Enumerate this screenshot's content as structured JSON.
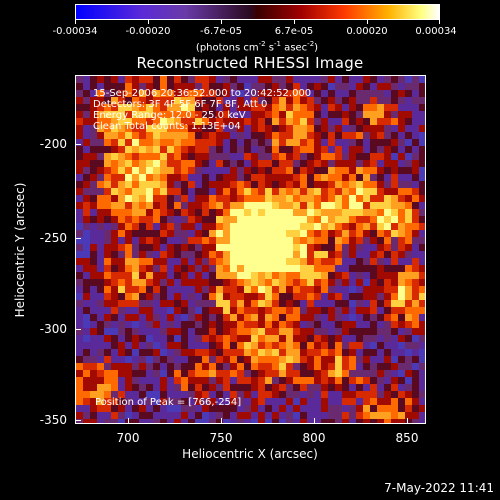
{
  "colorbar": {
    "ticks": [
      "-0.00034",
      "-0.00020",
      "-6.7e-05",
      "6.7e-05",
      "0.00020",
      "0.00034"
    ],
    "units_text": "(photons cm",
    "units_exp1": "-2",
    "units_mid": " s",
    "units_exp2": "-1",
    "units_mid2": " asec",
    "units_exp3": "-2",
    "units_end": ")",
    "colors": [
      "#0000ff",
      "#6a3aa8",
      "#3a0000",
      "#ff3a00",
      "#ffb000",
      "#ffffff"
    ]
  },
  "plot": {
    "title": "Reconstructed RHESSI Image",
    "info": [
      "15-Sep-2006 20:36:52.000 to 20:42:52.000",
      "Detectors: 3F 4F 5F 6F 7F 8F, Att 0",
      "Energy Range: 12.0 - 25.0 keV",
      "Clean     Total counts: 1.13E+04"
    ],
    "peak": "Position of Peak = [766,-254]",
    "xlabel": "Heliocentric X (arcsec)",
    "ylabel": "Heliocentric Y (arcsec)",
    "xticks": [
      "700",
      "750",
      "800",
      "850"
    ],
    "yticks": [
      "-200",
      "-250",
      "-300",
      "-350"
    ],
    "xlim": [
      670,
      860
    ],
    "ylim": [
      -355,
      -166
    ],
    "peak_x": 766,
    "peak_y": -254
  },
  "timestamp": "7-May-2022 11:41"
}
